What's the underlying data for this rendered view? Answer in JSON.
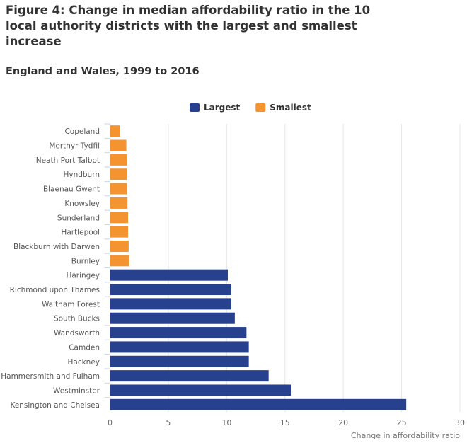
{
  "chart_data": {
    "type": "bar",
    "orientation": "horizontal",
    "title": "Figure 4: Change in median affordability ratio in the 10 local authority districts with the largest and smallest increase",
    "subtitle": "England and Wales, 1999 to 2016",
    "xlabel": "Change in affordability ratio",
    "xlim": [
      0,
      30
    ],
    "xticks": [
      0,
      5,
      10,
      15,
      20,
      25,
      30
    ],
    "grid": true,
    "legend_position": "top",
    "colors": {
      "Largest": "#27418f",
      "Smallest": "#f39431"
    },
    "categories": [
      "Copeland",
      "Merthyr Tydfil",
      "Neath Port Talbot",
      "Hyndburn",
      "Blaenau Gwent",
      "Knowsley",
      "Sunderland",
      "Hartlepool",
      "Blackburn with Darwen",
      "Burnley",
      "Haringey",
      "Richmond upon Thames",
      "Waltham Forest",
      "South Bucks",
      "Wandsworth",
      "Camden",
      "Hackney",
      "Hammersmith and Fulham",
      "Westminster",
      "Kensington and Chelsea"
    ],
    "series": [
      {
        "name": "Largest",
        "values": [
          null,
          null,
          null,
          null,
          null,
          null,
          null,
          null,
          null,
          null,
          10.1,
          10.4,
          10.4,
          10.7,
          11.7,
          11.9,
          11.9,
          13.6,
          15.5,
          25.4
        ]
      },
      {
        "name": "Smallest",
        "values": [
          0.85,
          1.4,
          1.45,
          1.45,
          1.45,
          1.5,
          1.55,
          1.55,
          1.6,
          1.65,
          null,
          null,
          null,
          null,
          null,
          null,
          null,
          null,
          null,
          null
        ]
      }
    ]
  }
}
